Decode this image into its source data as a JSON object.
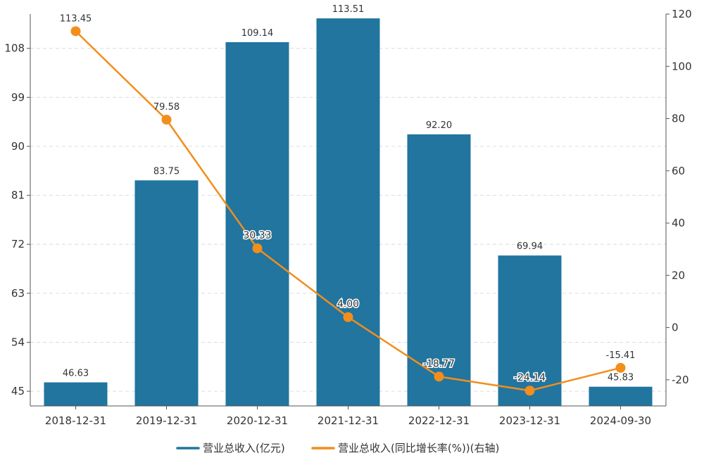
{
  "chart_data": {
    "type": "bar",
    "categories": [
      "2018-12-31",
      "2019-12-31",
      "2020-12-31",
      "2021-12-31",
      "2022-12-31",
      "2023-12-31",
      "2024-09-30"
    ],
    "series": [
      {
        "name": "营业总收入(亿元)",
        "type": "bar",
        "axis": "left",
        "color": "#21759f",
        "values": [
          46.63,
          83.75,
          109.14,
          113.51,
          92.2,
          69.94,
          45.83
        ],
        "labels": [
          "46.63",
          "83.75",
          "109.14",
          "113.51",
          "92.20",
          "69.94",
          "45.83"
        ]
      },
      {
        "name": "营业总收入(同比增长率(%))(右轴)",
        "type": "line",
        "axis": "right",
        "color": "#f28e1c",
        "values": [
          113.45,
          79.58,
          30.33,
          4.0,
          -18.77,
          -24.14,
          -15.41
        ],
        "labels": [
          "113.45",
          "79.58",
          "30.33",
          "4.00",
          "-18.77",
          "-24.14",
          "-15.41"
        ]
      }
    ],
    "y_left": {
      "min": 42.3,
      "max": 114.3,
      "ticks": [
        45,
        54,
        63,
        72,
        81,
        90,
        99,
        108
      ]
    },
    "y_right": {
      "min": -30,
      "max": 120,
      "ticks": [
        -20,
        0,
        20,
        40,
        60,
        80,
        100,
        120
      ]
    },
    "grid": true,
    "legend_position": "bottom"
  }
}
